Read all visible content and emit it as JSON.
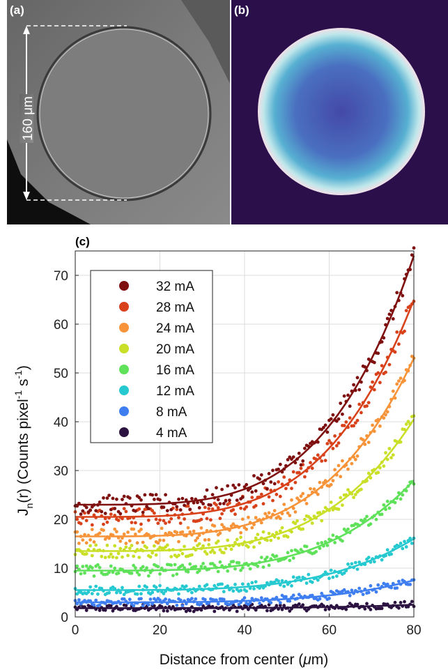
{
  "panel_labels": {
    "a": "(a)",
    "b": "(b)",
    "c": "(c)"
  },
  "scale_bar": "160 μm",
  "colors": {
    "I32": "#7f1010",
    "I28": "#d8421b",
    "I24": "#f7943a",
    "I20": "#c9df28",
    "I16": "#5fe15a",
    "I12": "#26c9d0",
    "I8": "#3f7ef0",
    "I4": "#2b1240",
    "background_b": "#2a0f4a"
  },
  "chart_data": {
    "type": "scatter",
    "xlabel": "Distance from center (μm)",
    "ylabel": "J_n(r) (Counts pixel^-1 s^-1)",
    "ylabel_parts": {
      "j": "J",
      "sub": "n",
      "mid": "(r) (Counts pixel",
      "sup1": "-1",
      "s": " s",
      "sup2": "-1",
      "end": ")"
    },
    "xlabel_parts": {
      "pre": "Distance from center (",
      "mu": "μ",
      "post": "m)"
    },
    "xlim": [
      0,
      80
    ],
    "ylim": [
      0,
      75
    ],
    "xticks": [
      "0",
      "20",
      "40",
      "60",
      "80"
    ],
    "yticks": [
      "0",
      "10",
      "20",
      "30",
      "40",
      "50",
      "60",
      "70"
    ],
    "grid": true,
    "legend_position": "upper-left",
    "series": [
      {
        "name": "32 mA",
        "color_key": "I32",
        "baseline": 23,
        "edge": 74
      },
      {
        "name": "28 mA",
        "color_key": "I28",
        "baseline": 20.5,
        "edge": 65
      },
      {
        "name": "24 mA",
        "color_key": "I24",
        "baseline": 16.5,
        "edge": 53
      },
      {
        "name": "20 mA",
        "color_key": "I20",
        "baseline": 13.5,
        "edge": 40.5
      },
      {
        "name": "16 mA",
        "color_key": "I16",
        "baseline": 9.5,
        "edge": 28
      },
      {
        "name": "12 mA",
        "color_key": "I12",
        "baseline": 5.5,
        "edge": 16
      },
      {
        "name": "8 mA",
        "color_key": "I8",
        "baseline": 3,
        "edge": 7.5
      },
      {
        "name": "4 mA",
        "color_key": "I4",
        "baseline": 1.8,
        "edge": 2.5
      }
    ]
  }
}
